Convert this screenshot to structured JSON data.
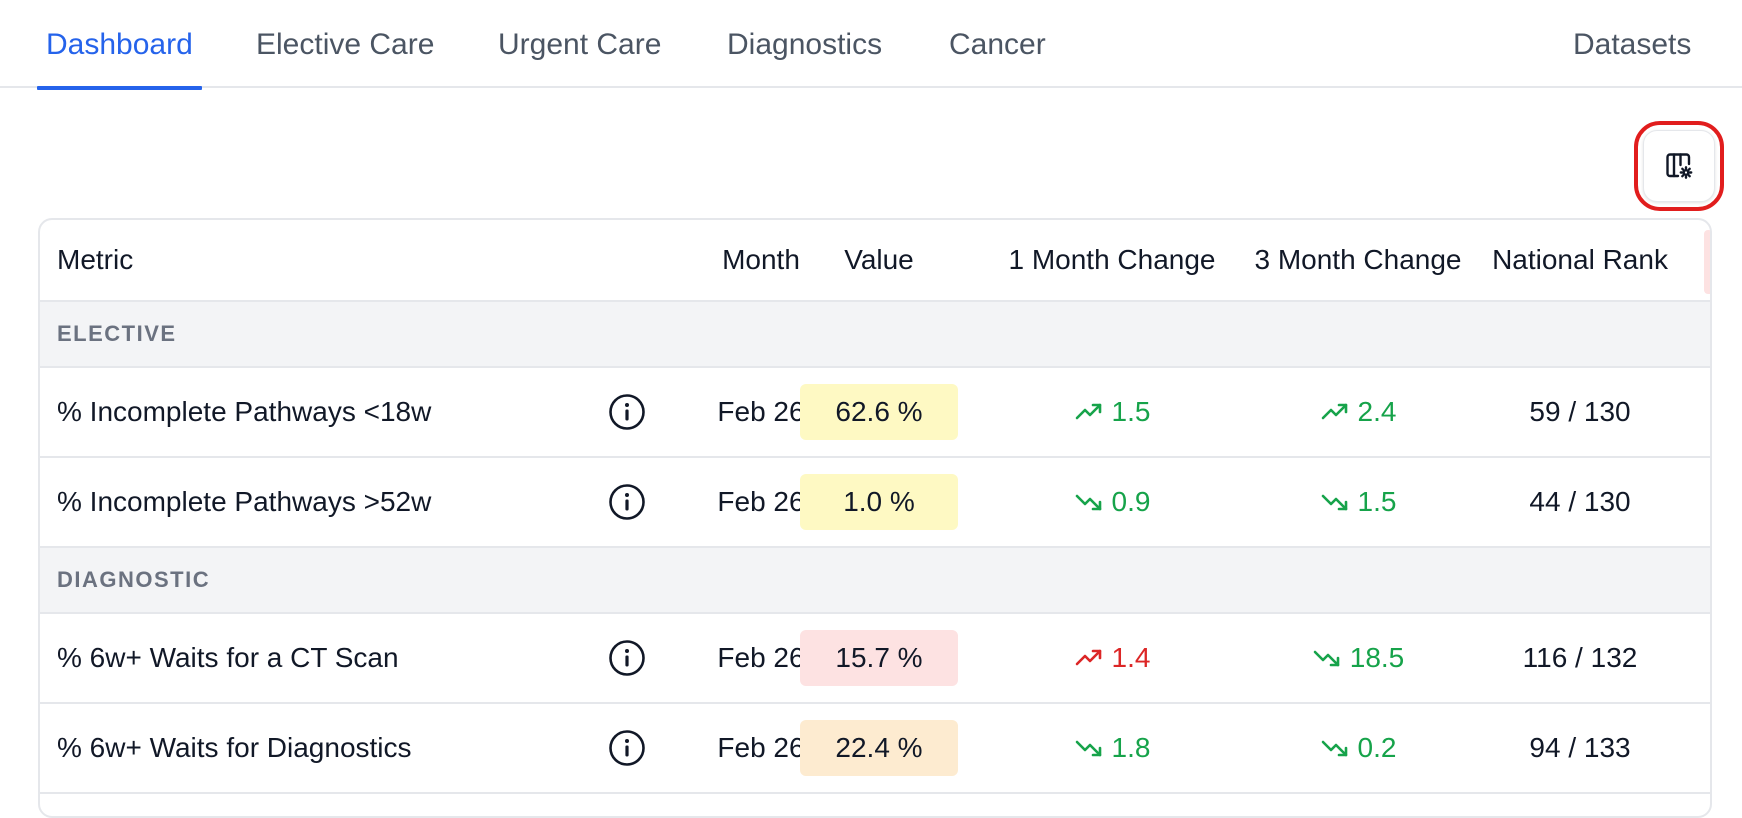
{
  "nav": {
    "tabs": [
      {
        "label": "Dashboard",
        "active": true
      },
      {
        "label": "Elective Care",
        "active": false
      },
      {
        "label": "Urgent Care",
        "active": false
      },
      {
        "label": "Diagnostics",
        "active": false
      },
      {
        "label": "Cancer",
        "active": false
      }
    ],
    "right_tab": "Datasets"
  },
  "toolbar": {
    "column_settings_icon": "columns-gear-icon"
  },
  "table": {
    "headers": {
      "metric": "Metric",
      "month": "Month",
      "value": "Value",
      "change_1m": "1 Month Change",
      "change_3m": "3 Month Change",
      "rank": "National Rank"
    },
    "sections": [
      {
        "label": "ELECTIVE",
        "rows": [
          {
            "metric": "% Incomplete Pathways <18w",
            "month": "Feb 26",
            "value": "62.6 %",
            "value_bg": "#fef9c3",
            "change_1m": {
              "value": "1.5",
              "direction": "up",
              "color": "#16a34a"
            },
            "change_3m": {
              "value": "2.4",
              "direction": "up",
              "color": "#16a34a"
            },
            "rank": "59 / 130"
          },
          {
            "metric": "% Incomplete Pathways >52w",
            "month": "Feb 26",
            "value": "1.0 %",
            "value_bg": "#fef9c3",
            "change_1m": {
              "value": "0.9",
              "direction": "down",
              "color": "#16a34a"
            },
            "change_3m": {
              "value": "1.5",
              "direction": "down",
              "color": "#16a34a"
            },
            "rank": "44 / 130"
          }
        ]
      },
      {
        "label": "DIAGNOSTIC",
        "rows": [
          {
            "metric": "% 6w+ Waits for a CT Scan",
            "month": "Feb 26",
            "value": "15.7 %",
            "value_bg": "#fde2e2",
            "change_1m": {
              "value": "1.4",
              "direction": "up",
              "color": "#dc2626"
            },
            "change_3m": {
              "value": "18.5",
              "direction": "down",
              "color": "#16a34a"
            },
            "rank": "116 / 132"
          },
          {
            "metric": "% 6w+ Waits for Diagnostics",
            "month": "Feb 26",
            "value": "22.4 %",
            "value_bg": "#fdebd0",
            "change_1m": {
              "value": "1.8",
              "direction": "down",
              "color": "#16a34a"
            },
            "change_3m": {
              "value": "0.2",
              "direction": "down",
              "color": "#16a34a"
            },
            "rank": "94 / 133"
          }
        ]
      }
    ]
  },
  "colors": {
    "accent": "#2563eb",
    "highlight_ring": "#e11d1d",
    "positive": "#16a34a",
    "negative": "#dc2626"
  }
}
